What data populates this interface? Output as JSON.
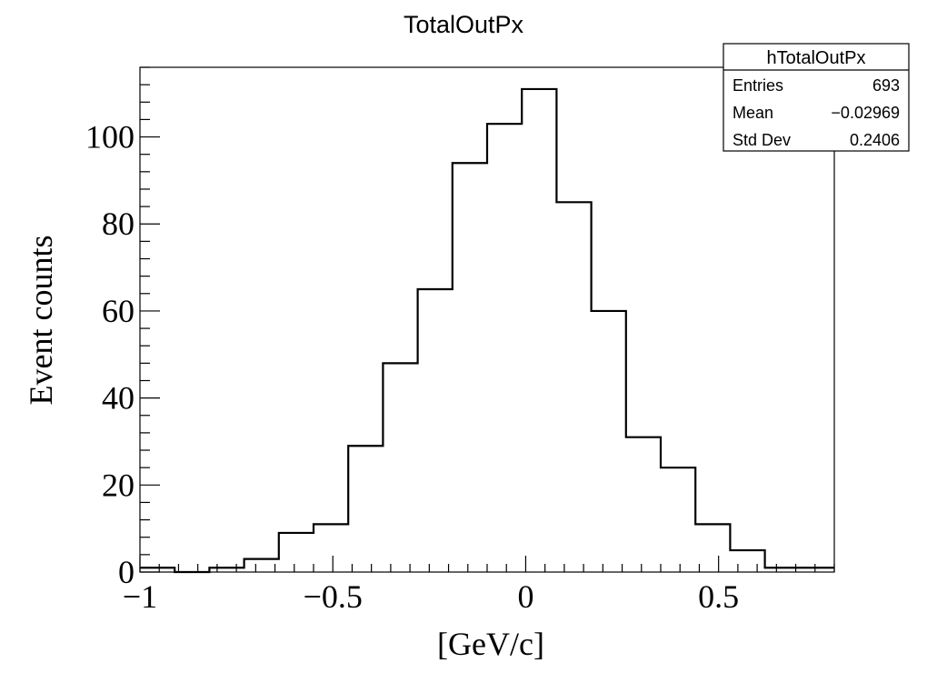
{
  "chart_data": {
    "type": "histogram",
    "title": "TotalOutPx",
    "xlabel": "[GeV/c]",
    "ylabel": "Event counts",
    "xlim": [
      -1.0,
      0.8
    ],
    "ylim": [
      0,
      116
    ],
    "x_ticks": [
      -1,
      -0.5,
      0,
      0.5
    ],
    "x_tick_labels": [
      "−1",
      "−0.5",
      "0",
      "0.5"
    ],
    "y_ticks": [
      0,
      20,
      40,
      60,
      80,
      100
    ],
    "y_tick_labels": [
      "0",
      "20",
      "40",
      "60",
      "80",
      "100"
    ],
    "bin_edges": [
      -1.0,
      -0.91,
      -0.82,
      -0.73,
      -0.64,
      -0.55,
      -0.46,
      -0.37,
      -0.28,
      -0.19,
      -0.1,
      -0.01,
      0.08,
      0.17,
      0.26,
      0.35,
      0.44,
      0.53,
      0.62,
      0.71,
      0.8
    ],
    "counts": [
      1,
      0,
      1,
      3,
      9,
      11,
      29,
      48,
      65,
      94,
      103,
      111,
      85,
      60,
      31,
      24,
      11,
      5,
      1,
      1
    ],
    "line_color": "#000000",
    "grid": false,
    "stats": {
      "name": "hTotalOutPx",
      "rows": [
        {
          "label": "Entries",
          "value": "693"
        },
        {
          "label": "Mean",
          "value": "−0.02969"
        },
        {
          "label": "Std Dev",
          "value": "0.2406"
        }
      ]
    }
  }
}
